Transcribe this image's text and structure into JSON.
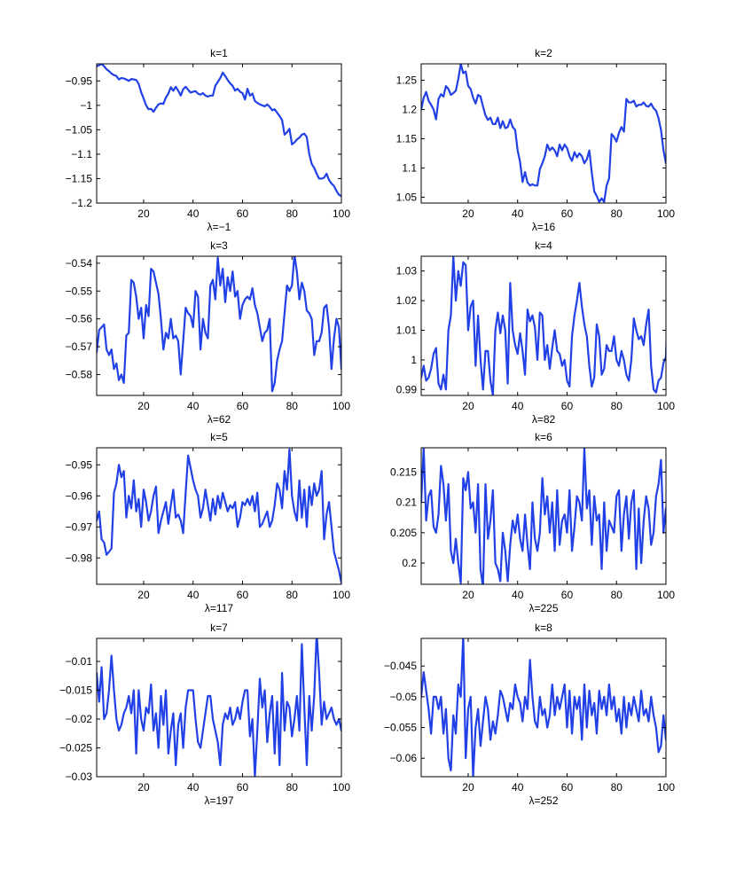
{
  "figure": {
    "line_color": "#2140e6"
  },
  "chart_data": [
    {
      "type": "line",
      "title": "k=1",
      "xlabel": "λ=−1",
      "ylabel": "",
      "xlim": [
        1,
        100
      ],
      "ylim": [
        -1.2,
        -0.915
      ],
      "xticks": [
        20,
        40,
        60,
        80,
        100
      ],
      "xtick_labels": [
        "20",
        "40",
        "60",
        "80",
        "100"
      ],
      "yticks": [
        -0.95,
        -1,
        -1.05,
        -1.1,
        -1.15,
        -1.2
      ],
      "ytick_labels": [
        "−0.95",
        "−1",
        "−1.05",
        "−1.1",
        "−1.15",
        "−1.2"
      ],
      "grid": false,
      "y": [
        -0.92,
        -0.918,
        -0.915,
        -0.92,
        -0.926,
        -0.93,
        -0.935,
        -0.938,
        -0.94,
        -0.947,
        -0.944,
        -0.945,
        -0.947,
        -0.95,
        -0.946,
        -0.947,
        -0.948,
        -0.956,
        -0.973,
        -0.986,
        -1.0,
        -1.008,
        -1.007,
        -1.013,
        -1.005,
        -0.998,
        -0.996,
        -0.997,
        -0.984,
        -0.976,
        -0.963,
        -0.97,
        -0.962,
        -0.97,
        -0.98,
        -0.967,
        -0.962,
        -0.968,
        -0.974,
        -0.972,
        -0.971,
        -0.976,
        -0.978,
        -0.975,
        -0.98,
        -0.982,
        -0.98,
        -0.98,
        -0.96,
        -0.952,
        -0.944,
        -0.933,
        -0.94,
        -0.948,
        -0.955,
        -0.96,
        -0.97,
        -0.966,
        -0.972,
        -0.975,
        -0.988,
        -0.966,
        -0.98,
        -0.976,
        -0.991,
        -0.995,
        -0.998,
        -1.0,
        -1.002,
        -0.998,
        -1.003,
        -1.01,
        -1.008,
        -1.015,
        -1.022,
        -1.03,
        -1.06,
        -1.055,
        -1.048,
        -1.08,
        -1.076,
        -1.07,
        -1.066,
        -1.06,
        -1.058,
        -1.065,
        -1.1,
        -1.12,
        -1.128,
        -1.14,
        -1.15,
        -1.15,
        -1.148,
        -1.14,
        -1.153,
        -1.16,
        -1.165,
        -1.175,
        -1.183,
        -1.186
      ]
    },
    {
      "type": "line",
      "title": "k=2",
      "xlabel": "λ=16",
      "ylabel": "",
      "xlim": [
        1,
        100
      ],
      "ylim": [
        1.04,
        1.278
      ],
      "xticks": [
        20,
        40,
        60,
        80,
        100
      ],
      "xtick_labels": [
        "20",
        "40",
        "60",
        "80",
        "100"
      ],
      "yticks": [
        1.25,
        1.2,
        1.15,
        1.1,
        1.05
      ],
      "ytick_labels": [
        "1.25",
        "1.2",
        "1.15",
        "1.1",
        "1.05"
      ],
      "grid": false,
      "y": [
        1.2,
        1.22,
        1.23,
        1.215,
        1.208,
        1.2,
        1.183,
        1.218,
        1.226,
        1.222,
        1.24,
        1.235,
        1.225,
        1.228,
        1.232,
        1.252,
        1.278,
        1.262,
        1.265,
        1.24,
        1.235,
        1.22,
        1.21,
        1.225,
        1.222,
        1.205,
        1.19,
        1.182,
        1.186,
        1.175,
        1.175,
        1.186,
        1.168,
        1.18,
        1.168,
        1.17,
        1.183,
        1.17,
        1.165,
        1.13,
        1.11,
        1.076,
        1.093,
        1.075,
        1.07,
        1.072,
        1.07,
        1.07,
        1.098,
        1.108,
        1.12,
        1.14,
        1.13,
        1.135,
        1.13,
        1.12,
        1.14,
        1.13,
        1.14,
        1.134,
        1.12,
        1.112,
        1.127,
        1.118,
        1.125,
        1.12,
        1.108,
        1.115,
        1.13,
        1.092,
        1.06,
        1.052,
        1.042,
        1.048,
        1.042,
        1.07,
        1.082,
        1.158,
        1.153,
        1.145,
        1.16,
        1.17,
        1.162,
        1.218,
        1.212,
        1.212,
        1.215,
        1.205,
        1.208,
        1.208,
        1.212,
        1.206,
        1.205,
        1.21,
        1.202,
        1.198,
        1.185,
        1.165,
        1.13,
        1.108,
        1.14,
        1.15,
        1.16,
        1.14,
        1.138
      ]
    },
    {
      "type": "line",
      "title": "k=3",
      "xlabel": "λ=62",
      "ylabel": "",
      "xlim": [
        1,
        100
      ],
      "ylim": [
        -0.5875,
        -0.5375
      ],
      "xticks": [
        20,
        40,
        60,
        80,
        100
      ],
      "xtick_labels": [
        "20",
        "40",
        "60",
        "80",
        "100"
      ],
      "yticks": [
        -0.54,
        -0.55,
        -0.56,
        -0.57,
        -0.58
      ],
      "ytick_labels": [
        "−0.54",
        "−0.55",
        "−0.56",
        "−0.57",
        "−0.58"
      ],
      "grid": false,
      "y": [
        -0.572,
        -0.564,
        -0.563,
        -0.562,
        -0.571,
        -0.573,
        -0.571,
        -0.578,
        -0.576,
        -0.582,
        -0.58,
        -0.583,
        -0.566,
        -0.565,
        -0.546,
        -0.547,
        -0.552,
        -0.56,
        -0.556,
        -0.567,
        -0.555,
        -0.559,
        -0.542,
        -0.543,
        -0.547,
        -0.551,
        -0.56,
        -0.571,
        -0.565,
        -0.567,
        -0.56,
        -0.567,
        -0.566,
        -0.568,
        -0.58,
        -0.568,
        -0.556,
        -0.558,
        -0.559,
        -0.563,
        -0.55,
        -0.552,
        -0.571,
        -0.56,
        -0.565,
        -0.567,
        -0.548,
        -0.546,
        -0.553,
        -0.538,
        -0.548,
        -0.542,
        -0.554,
        -0.545,
        -0.55,
        -0.543,
        -0.552,
        -0.55,
        -0.56,
        -0.555,
        -0.553,
        -0.552,
        -0.553,
        -0.549,
        -0.555,
        -0.558,
        -0.563,
        -0.568,
        -0.565,
        -0.564,
        -0.56,
        -0.586,
        -0.583,
        -0.575,
        -0.571,
        -0.568,
        -0.558,
        -0.548,
        -0.55,
        -0.548,
        -0.537,
        -0.543,
        -0.553,
        -0.547,
        -0.55,
        -0.557,
        -0.558,
        -0.56,
        -0.573,
        -0.568,
        -0.568,
        -0.565,
        -0.556,
        -0.555,
        -0.563,
        -0.578,
        -0.567,
        -0.56,
        -0.563,
        -0.578
      ]
    },
    {
      "type": "line",
      "title": "k=4",
      "xlabel": "λ=82",
      "ylabel": "",
      "xlim": [
        1,
        100
      ],
      "ylim": [
        0.988,
        1.035
      ],
      "xticks": [
        20,
        40,
        60,
        80,
        100
      ],
      "xtick_labels": [
        "20",
        "40",
        "60",
        "80",
        "100"
      ],
      "yticks": [
        1.03,
        1.02,
        1.01,
        1.0,
        0.99
      ],
      "ytick_labels": [
        "1.03",
        "1.02",
        "1.01",
        "1",
        "0.99"
      ],
      "grid": false,
      "y": [
        0.994,
        0.998,
        0.993,
        0.994,
        0.997,
        1.002,
        1.004,
        0.992,
        0.99,
        0.995,
        0.99,
        1.01,
        1.015,
        1.035,
        1.02,
        1.03,
        1.025,
        1.033,
        1.032,
        1.01,
        1.018,
        1.02,
        0.998,
        1.015,
        1.0,
        0.99,
        1.003,
        1.003,
        0.993,
        0.988,
        1.01,
        1.016,
        1.009,
        1.015,
        1.01,
        0.992,
        1.026,
        1.01,
        1.005,
        1.002,
        1.009,
        1.003,
        0.995,
        1.017,
        1.013,
        1.015,
        1.011,
        1.0,
        1.016,
        1.015,
        1.0,
        1.005,
        0.997,
        1.004,
        1.01,
        1.003,
        1.002,
        0.998,
        1.0,
        0.993,
        0.991,
        1.008,
        1.015,
        1.02,
        1.026,
        1.018,
        1.012,
        1.008,
        0.998,
        0.991,
        0.994,
        1.012,
        1.008,
        0.995,
        0.997,
        1.005,
        1.003,
        1.003,
        1.008,
        1.0,
        0.998,
        1.003,
        1.0,
        0.995,
        0.993,
        1.0,
        1.014,
        1.01,
        1.007,
        1.008,
        1.005,
        1.012,
        1.017,
        0.998,
        0.99,
        0.989,
        0.993,
        0.994,
        0.999,
        1.001,
        1.03
      ]
    },
    {
      "type": "line",
      "title": "k=5",
      "xlabel": "λ=117",
      "ylabel": "",
      "xlim": [
        1,
        100
      ],
      "ylim": [
        -0.9885,
        -0.9445
      ],
      "xticks": [
        20,
        40,
        60,
        80,
        100
      ],
      "xtick_labels": [
        "20",
        "40",
        "60",
        "80",
        "100"
      ],
      "yticks": [
        -0.95,
        -0.96,
        -0.97,
        -0.98
      ],
      "ytick_labels": [
        "−0.95",
        "−0.96",
        "−0.97",
        "−0.98"
      ],
      "grid": false,
      "y": [
        -0.968,
        -0.965,
        -0.974,
        -0.975,
        -0.979,
        -0.978,
        -0.977,
        -0.959,
        -0.956,
        -0.95,
        -0.954,
        -0.952,
        -0.967,
        -0.96,
        -0.964,
        -0.955,
        -0.965,
        -0.961,
        -0.97,
        -0.958,
        -0.962,
        -0.968,
        -0.965,
        -0.96,
        -0.957,
        -0.972,
        -0.968,
        -0.965,
        -0.962,
        -0.969,
        -0.963,
        -0.958,
        -0.967,
        -0.966,
        -0.968,
        -0.972,
        -0.959,
        -0.947,
        -0.951,
        -0.955,
        -0.958,
        -0.96,
        -0.967,
        -0.964,
        -0.958,
        -0.963,
        -0.968,
        -0.961,
        -0.966,
        -0.96,
        -0.964,
        -0.959,
        -0.962,
        -0.965,
        -0.963,
        -0.964,
        -0.962,
        -0.97,
        -0.967,
        -0.962,
        -0.963,
        -0.961,
        -0.963,
        -0.96,
        -0.965,
        -0.959,
        -0.97,
        -0.969,
        -0.967,
        -0.965,
        -0.97,
        -0.968,
        -0.963,
        -0.956,
        -0.958,
        -0.964,
        -0.952,
        -0.958,
        -0.945,
        -0.96,
        -0.965,
        -0.968,
        -0.955,
        -0.967,
        -0.958,
        -0.97,
        -0.957,
        -0.963,
        -0.956,
        -0.96,
        -0.958,
        -0.952,
        -0.974,
        -0.966,
        -0.962,
        -0.97,
        -0.978,
        -0.981,
        -0.984,
        -0.988
      ]
    },
    {
      "type": "line",
      "title": "k=6",
      "xlabel": "λ=225",
      "ylabel": "",
      "xlim": [
        1,
        100
      ],
      "ylim": [
        0.1965,
        0.219
      ],
      "xticks": [
        20,
        40,
        60,
        80,
        100
      ],
      "xtick_labels": [
        "20",
        "40",
        "60",
        "80",
        "100"
      ],
      "yticks": [
        0.215,
        0.21,
        0.205,
        0.2
      ],
      "ytick_labels": [
        "0.215",
        "0.21",
        "0.205",
        "0.2"
      ],
      "grid": false,
      "y": [
        0.21,
        0.219,
        0.207,
        0.211,
        0.212,
        0.206,
        0.205,
        0.208,
        0.216,
        0.213,
        0.207,
        0.213,
        0.202,
        0.2,
        0.204,
        0.2,
        0.1967,
        0.214,
        0.212,
        0.215,
        0.209,
        0.21,
        0.205,
        0.213,
        0.199,
        0.196,
        0.213,
        0.204,
        0.207,
        0.212,
        0.2,
        0.199,
        0.197,
        0.205,
        0.202,
        0.197,
        0.203,
        0.207,
        0.205,
        0.208,
        0.204,
        0.202,
        0.208,
        0.203,
        0.199,
        0.21,
        0.204,
        0.202,
        0.205,
        0.214,
        0.208,
        0.211,
        0.205,
        0.21,
        0.202,
        0.212,
        0.203,
        0.207,
        0.208,
        0.205,
        0.212,
        0.202,
        0.206,
        0.211,
        0.21,
        0.207,
        0.219,
        0.209,
        0.212,
        0.203,
        0.211,
        0.207,
        0.208,
        0.199,
        0.21,
        0.202,
        0.207,
        0.206,
        0.205,
        0.211,
        0.212,
        0.202,
        0.208,
        0.211,
        0.204,
        0.21,
        0.212,
        0.199,
        0.209,
        0.2,
        0.207,
        0.211,
        0.209,
        0.203,
        0.205,
        0.211,
        0.213,
        0.217,
        0.205,
        0.209,
        0.21
      ]
    },
    {
      "type": "line",
      "title": "k=7",
      "xlabel": "λ=197",
      "ylabel": "",
      "xlim": [
        1,
        100
      ],
      "ylim": [
        -0.03,
        -0.006
      ],
      "xticks": [
        20,
        40,
        60,
        80,
        100
      ],
      "xtick_labels": [
        "20",
        "40",
        "60",
        "80",
        "100"
      ],
      "yticks": [
        -0.01,
        -0.015,
        -0.02,
        -0.025,
        -0.03
      ],
      "ytick_labels": [
        "−0.01",
        "−0.015",
        "−0.02",
        "−0.025",
        "−0.03"
      ],
      "grid": false,
      "y": [
        -0.012,
        -0.017,
        -0.011,
        -0.02,
        -0.019,
        -0.015,
        -0.009,
        -0.015,
        -0.02,
        -0.022,
        -0.021,
        -0.019,
        -0.018,
        -0.016,
        -0.019,
        -0.015,
        -0.026,
        -0.015,
        -0.02,
        -0.022,
        -0.018,
        -0.019,
        -0.014,
        -0.022,
        -0.019,
        -0.025,
        -0.016,
        -0.021,
        -0.015,
        -0.026,
        -0.022,
        -0.019,
        -0.028,
        -0.021,
        -0.019,
        -0.025,
        -0.018,
        -0.015,
        -0.015,
        -0.015,
        -0.02,
        -0.024,
        -0.025,
        -0.022,
        -0.019,
        -0.016,
        -0.016,
        -0.02,
        -0.022,
        -0.024,
        -0.028,
        -0.021,
        -0.019,
        -0.02,
        -0.018,
        -0.021,
        -0.02,
        -0.018,
        -0.02,
        -0.017,
        -0.015,
        -0.015,
        -0.023,
        -0.02,
        -0.03,
        -0.022,
        -0.013,
        -0.018,
        -0.015,
        -0.024,
        -0.019,
        -0.016,
        -0.026,
        -0.017,
        -0.028,
        -0.012,
        -0.022,
        -0.017,
        -0.018,
        -0.023,
        -0.02,
        -0.016,
        -0.022,
        -0.007,
        -0.018,
        -0.028,
        -0.016,
        -0.022,
        -0.016,
        -0.005,
        -0.012,
        -0.021,
        -0.017,
        -0.02,
        -0.019,
        -0.018,
        -0.02,
        -0.021,
        -0.02,
        -0.022
      ]
    },
    {
      "type": "line",
      "title": "k=8",
      "xlabel": "λ=252",
      "ylabel": "",
      "xlim": [
        1,
        100
      ],
      "ylim": [
        -0.063,
        -0.0405
      ],
      "xticks": [
        20,
        40,
        60,
        80,
        100
      ],
      "xtick_labels": [
        "20",
        "40",
        "60",
        "80",
        "100"
      ],
      "yticks": [
        -0.045,
        -0.05,
        -0.055,
        -0.06
      ],
      "ytick_labels": [
        "−0.045",
        "−0.05",
        "−0.055",
        "−0.06"
      ],
      "grid": false,
      "y": [
        -0.05,
        -0.046,
        -0.049,
        -0.052,
        -0.056,
        -0.05,
        -0.05,
        -0.052,
        -0.05,
        -0.056,
        -0.052,
        -0.06,
        -0.062,
        -0.053,
        -0.056,
        -0.048,
        -0.05,
        -0.04,
        -0.06,
        -0.052,
        -0.05,
        -0.063,
        -0.055,
        -0.052,
        -0.058,
        -0.054,
        -0.05,
        -0.052,
        -0.057,
        -0.054,
        -0.056,
        -0.053,
        -0.049,
        -0.05,
        -0.052,
        -0.054,
        -0.051,
        -0.052,
        -0.048,
        -0.05,
        -0.051,
        -0.054,
        -0.05,
        -0.052,
        -0.044,
        -0.05,
        -0.054,
        -0.055,
        -0.05,
        -0.053,
        -0.052,
        -0.055,
        -0.053,
        -0.048,
        -0.053,
        -0.05,
        -0.052,
        -0.05,
        -0.048,
        -0.055,
        -0.049,
        -0.056,
        -0.05,
        -0.052,
        -0.05,
        -0.057,
        -0.048,
        -0.055,
        -0.049,
        -0.053,
        -0.051,
        -0.056,
        -0.049,
        -0.052,
        -0.05,
        -0.053,
        -0.048,
        -0.052,
        -0.05,
        -0.054,
        -0.052,
        -0.056,
        -0.05,
        -0.055,
        -0.051,
        -0.053,
        -0.05,
        -0.052,
        -0.054,
        -0.049,
        -0.053,
        -0.052,
        -0.054,
        -0.05,
        -0.053,
        -0.055,
        -0.059,
        -0.058,
        -0.053,
        -0.057
      ]
    }
  ]
}
